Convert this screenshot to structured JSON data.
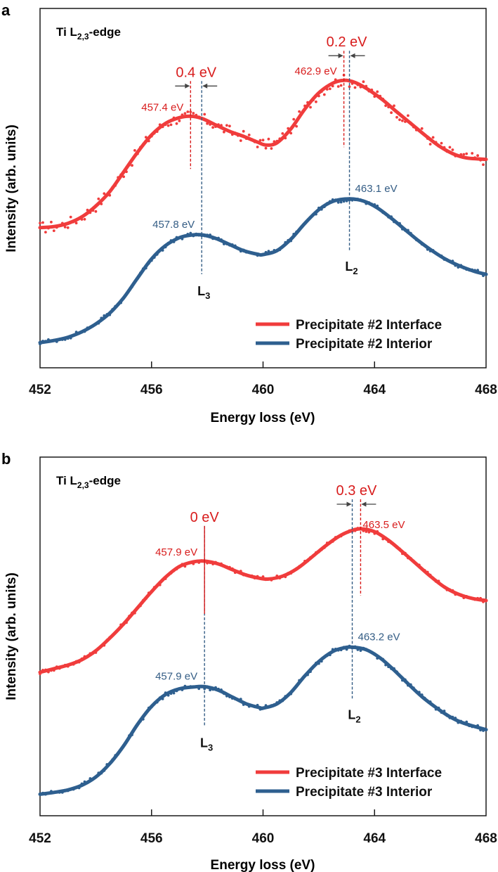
{
  "colors": {
    "interface": "#f03c3c",
    "interior": "#2e5f8f",
    "interface_label": "#d81c1c",
    "interior_label": "#345d85",
    "axis": "#1a1a1a",
    "arrow": "#444444"
  },
  "chart_data": [
    {
      "panel": "a",
      "type": "line",
      "title": "Ti L2,3-edge",
      "title_main": "Ti L",
      "title_sub": "2,3",
      "title_suffix": "-edge",
      "xlabel": "Energy loss (eV)",
      "ylabel": "Intensity (arb. units)",
      "xlim": [
        452,
        468
      ],
      "ylim": [
        0,
        100
      ],
      "xticks": [
        452,
        456,
        460,
        464,
        468
      ],
      "grid": false,
      "legend_position": "bottom-right",
      "series": [
        {
          "name": "Precipitate #2 Interface",
          "color_key": "interface",
          "x": [
            452,
            452.5,
            453,
            453.5,
            454,
            454.5,
            455,
            455.5,
            456,
            456.5,
            457,
            457.4,
            457.8,
            458.3,
            458.8,
            459.3,
            459.8,
            460.1,
            460.5,
            461,
            461.5,
            462,
            462.5,
            462.9,
            463.3,
            463.8,
            464.3,
            464.8,
            465.3,
            465.8,
            466.3,
            466.8,
            467.3,
            468
          ],
          "values": [
            39,
            39.3,
            40.2,
            42,
            45,
            49,
            54.5,
            60,
            64.8,
            68,
            69.6,
            70,
            69.4,
            67.6,
            65.8,
            64.4,
            62.8,
            62,
            62.6,
            66.5,
            72,
            76.5,
            79.2,
            80,
            79.4,
            77.3,
            74.5,
            71.2,
            68,
            64.8,
            61.8,
            59.6,
            58.4,
            58
          ]
        },
        {
          "name": "Precipitate #2 Interior",
          "color_key": "interior",
          "x": [
            452,
            452.5,
            453,
            453.5,
            454,
            454.5,
            455,
            455.5,
            456,
            456.5,
            457,
            457.4,
            457.8,
            458.3,
            458.8,
            459.3,
            459.8,
            460,
            460.5,
            461,
            461.5,
            462,
            462.5,
            463.1,
            463.6,
            464.1,
            464.6,
            465.1,
            465.6,
            466.1,
            466.6,
            467.1,
            467.6,
            468
          ],
          "values": [
            7,
            7.6,
            8.5,
            10,
            12.2,
            15.2,
            19.5,
            25,
            30.3,
            34,
            36.2,
            36.9,
            37,
            36,
            34.3,
            32.6,
            31.6,
            31.5,
            32.6,
            35.8,
            40.2,
            44,
            46.3,
            47,
            46.4,
            44.5,
            41.6,
            38.4,
            35.2,
            32.4,
            30,
            28.2,
            26.8,
            26
          ]
        }
      ],
      "annotations": {
        "interface_L3": {
          "value_eV": 457.4,
          "label": "457.4 eV"
        },
        "interior_L3": {
          "value_eV": 457.8,
          "label": "457.8 eV"
        },
        "interface_L2": {
          "value_eV": 462.9,
          "label": "462.9 eV"
        },
        "interior_L2": {
          "value_eV": 463.1,
          "label": "463.1 eV"
        },
        "shift_L3": "0.4 eV",
        "shift_L2": "0.2 eV",
        "L3_label": "L",
        "L3_sub": "3",
        "L2_label": "L",
        "L2_sub": "2"
      }
    },
    {
      "panel": "b",
      "type": "line",
      "title": "Ti L2,3-edge",
      "title_main": "Ti L",
      "title_sub": "2,3",
      "title_suffix": "-edge",
      "xlabel": "Energy loss (eV)",
      "ylabel": "Intensity (arb. units)",
      "xlim": [
        452,
        468
      ],
      "ylim": [
        0,
        100
      ],
      "xticks": [
        452,
        456,
        460,
        464,
        468
      ],
      "grid": false,
      "legend_position": "bottom-right",
      "series": [
        {
          "name": "Precipitate #3 Interface",
          "color_key": "interface",
          "x": [
            452,
            452.5,
            453,
            453.5,
            454,
            454.5,
            455,
            455.5,
            456,
            456.5,
            457,
            457.5,
            457.9,
            458.4,
            458.9,
            459.4,
            459.9,
            460.2,
            460.7,
            461.2,
            461.7,
            462.2,
            462.7,
            463.1,
            463.5,
            464,
            464.5,
            465,
            465.5,
            466,
            466.5,
            467,
            467.5,
            468
          ],
          "values": [
            40,
            41,
            42,
            43.5,
            46,
            49.5,
            53.5,
            58,
            62.5,
            66.5,
            69.5,
            70.8,
            71,
            70.2,
            68.6,
            67.1,
            66.2,
            66,
            66.8,
            68.8,
            71.8,
            75,
            77.8,
            79.3,
            80,
            79.2,
            76.8,
            73.6,
            70.2,
            66.8,
            63.8,
            61.8,
            60.6,
            60
          ]
        },
        {
          "name": "Precipitate #3 Interior",
          "color_key": "interior",
          "x": [
            452,
            452.5,
            453,
            453.5,
            454,
            454.5,
            455,
            455.5,
            456,
            456.5,
            457,
            457.5,
            457.9,
            458.4,
            458.9,
            459.4,
            459.9,
            460,
            460.5,
            461,
            461.5,
            462,
            462.5,
            462.9,
            463.2,
            463.7,
            464.2,
            464.7,
            465.2,
            465.7,
            466.2,
            466.7,
            467.2,
            468
          ],
          "values": [
            6,
            6.5,
            7.2,
            8.5,
            10.8,
            14.5,
            19.5,
            25.5,
            30.5,
            33.8,
            35.4,
            35.9,
            36,
            35,
            33.1,
            31.2,
            30.1,
            30,
            31.2,
            34.4,
            39,
            43,
            45.8,
            46.8,
            47,
            46.3,
            44,
            40.6,
            36.8,
            33.2,
            30.2,
            27.6,
            25.8,
            24
          ]
        }
      ],
      "annotations": {
        "interface_L3": {
          "value_eV": 457.9,
          "label": "457.9 eV"
        },
        "interior_L3": {
          "value_eV": 457.9,
          "label": "457.9 eV"
        },
        "interface_L2": {
          "value_eV": 463.5,
          "label": "463.5 eV"
        },
        "interior_L2": {
          "value_eV": 463.2,
          "label": "463.2 eV"
        },
        "shift_L3": "0 eV",
        "shift_L2": "0.3 eV",
        "L3_label": "L",
        "L3_sub": "3",
        "L2_label": "L",
        "L2_sub": "2"
      }
    }
  ]
}
